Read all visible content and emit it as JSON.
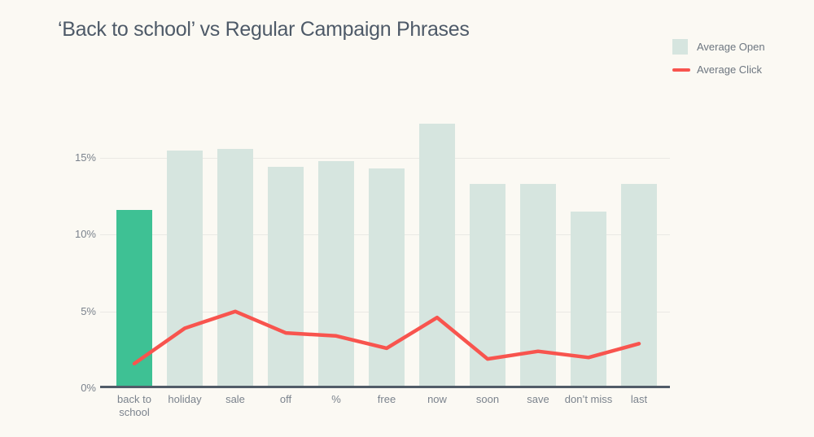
{
  "colors": {
    "background": "#fbf9f3",
    "bar": "#d6e5df",
    "bar-highlight": "#3ec194",
    "line": "#f8544e",
    "grid": "#eae9e4",
    "axis": "#515c68",
    "tick-text": "#7b838d",
    "title-text": "#4e5a68",
    "legend-text": "#6d7680"
  },
  "chart_data": {
    "type": "bar",
    "title": "‘Back to school’ vs Regular Campaign Phrases",
    "categories": [
      "back to school",
      "holiday",
      "sale",
      "off",
      "%",
      "free",
      "now",
      "soon",
      "save",
      "don’t miss",
      "last"
    ],
    "series": [
      {
        "name": "Average Open",
        "type": "bar",
        "values": [
          11.6,
          15.5,
          15.6,
          14.4,
          14.8,
          14.3,
          17.2,
          13.3,
          13.3,
          11.5,
          13.3
        ]
      },
      {
        "name": "Average Click",
        "type": "line",
        "values": [
          1.6,
          3.9,
          5.0,
          3.6,
          3.4,
          2.6,
          4.6,
          1.9,
          2.4,
          2.0,
          2.9
        ]
      }
    ],
    "y_ticks": [
      {
        "label": "0%",
        "value": 0
      },
      {
        "label": "5%",
        "value": 5
      },
      {
        "label": "10%",
        "value": 10
      },
      {
        "label": "15%",
        "value": 15
      }
    ],
    "ylim": [
      0,
      17.86
    ],
    "xlabel": "",
    "ylabel": "",
    "grid": true,
    "legend_position": "top-right",
    "highlight_category": "back to school",
    "highlight_series": "Average Open"
  }
}
